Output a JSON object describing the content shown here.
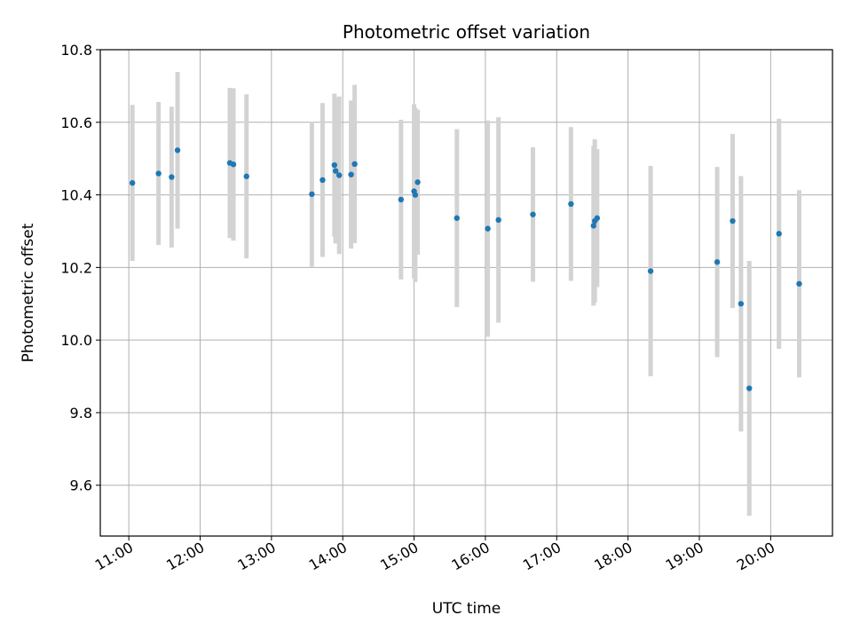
{
  "chart_data": {
    "type": "scatter",
    "title": "Photometric offset variation",
    "xlabel": "UTC time",
    "ylabel": "Photometric offset",
    "xlim": [
      "10:36",
      "20:52"
    ],
    "ylim": [
      9.46,
      10.8
    ],
    "x_ticks": [
      "11:00",
      "12:00",
      "13:00",
      "14:00",
      "15:00",
      "16:00",
      "17:00",
      "18:00",
      "19:00",
      "20:00"
    ],
    "y_ticks": [
      "9.6",
      "9.8",
      "10.0",
      "10.2",
      "10.4",
      "10.6",
      "10.8"
    ],
    "grid": true,
    "colors": {
      "point": "#1f77b4",
      "errorbar": "#d3d3d3",
      "grid": "#b0b0b0"
    },
    "series": [
      {
        "points": [
          {
            "x": "11:03",
            "y": 10.433,
            "err": 0.215
          },
          {
            "x": "11:25",
            "y": 10.459,
            "err": 0.197
          },
          {
            "x": "11:36",
            "y": 10.449,
            "err": 0.194
          },
          {
            "x": "11:41",
            "y": 10.523,
            "err": 0.216
          },
          {
            "x": "12:25",
            "y": 10.488,
            "err": 0.207
          },
          {
            "x": "12:28",
            "y": 10.484,
            "err": 0.21
          },
          {
            "x": "12:39",
            "y": 10.451,
            "err": 0.226
          },
          {
            "x": "13:34",
            "y": 10.402,
            "err": 0.2
          },
          {
            "x": "13:43",
            "y": 10.441,
            "err": 0.212
          },
          {
            "x": "13:53",
            "y": 10.482,
            "err": 0.197
          },
          {
            "x": "13:54",
            "y": 10.466,
            "err": 0.2
          },
          {
            "x": "13:57",
            "y": 10.454,
            "err": 0.217
          },
          {
            "x": "14:07",
            "y": 10.456,
            "err": 0.204
          },
          {
            "x": "14:10",
            "y": 10.485,
            "err": 0.218
          },
          {
            "x": "14:49",
            "y": 10.387,
            "err": 0.22
          },
          {
            "x": "15:00",
            "y": 10.41,
            "err": 0.24
          },
          {
            "x": "15:01",
            "y": 10.4,
            "err": 0.24
          },
          {
            "x": "15:03",
            "y": 10.435,
            "err": 0.2
          },
          {
            "x": "15:36",
            "y": 10.336,
            "err": 0.245
          },
          {
            "x": "16:02",
            "y": 10.307,
            "err": 0.298
          },
          {
            "x": "16:11",
            "y": 10.331,
            "err": 0.283
          },
          {
            "x": "16:40",
            "y": 10.346,
            "err": 0.185
          },
          {
            "x": "17:12",
            "y": 10.375,
            "err": 0.212
          },
          {
            "x": "17:31",
            "y": 10.315,
            "err": 0.22
          },
          {
            "x": "17:32",
            "y": 10.328,
            "err": 0.225
          },
          {
            "x": "17:34",
            "y": 10.336,
            "err": 0.19
          },
          {
            "x": "18:19",
            "y": 10.19,
            "err": 0.29
          },
          {
            "x": "19:15",
            "y": 10.215,
            "err": 0.262
          },
          {
            "x": "19:28",
            "y": 10.328,
            "err": 0.24
          },
          {
            "x": "19:35",
            "y": 10.1,
            "err": 0.352
          },
          {
            "x": "19:42",
            "y": 9.867,
            "err": 0.351
          },
          {
            "x": "20:07",
            "y": 10.293,
            "err": 0.317
          },
          {
            "x": "20:24",
            "y": 10.155,
            "err": 0.258
          }
        ]
      }
    ]
  }
}
